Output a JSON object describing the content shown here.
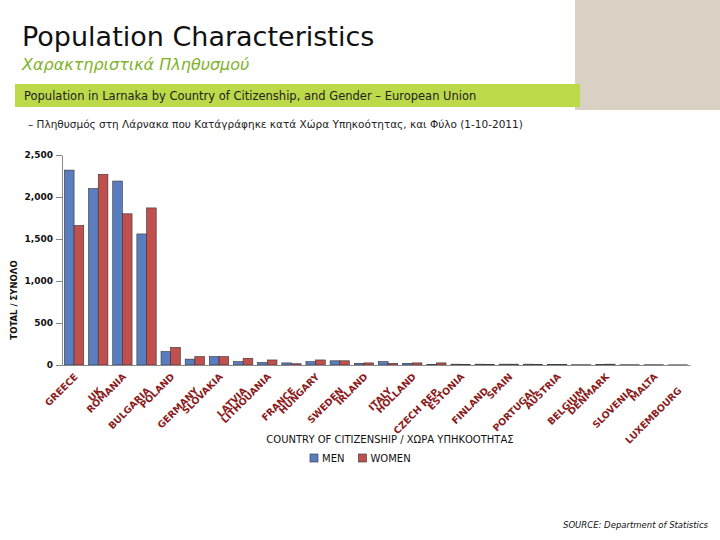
{
  "chart_data": {
    "type": "bar",
    "title": "Population Characteristics",
    "subtitle": "Χαρακτηριστικά Πληθυσμού",
    "annotations": [
      "Population in Larnaka by Country of Citizenship, and Gender – European Union",
      "– Πληθυσμός στη Λάρνακα που Κατάγράφηκε κατά Χώρα Υπηκοότητας, και Φύλο (1-10-2011)",
      "SOURCE: Department of Statistics"
    ],
    "x_label": "COUNTRY OF CITIZENSHIP / ΧΩΡΑ ΥΠΗΚΟΟΤΗΤΑΣ",
    "y_label": "TOTAL / ΣΥΝΟΛΟ",
    "categories": [
      "GREECE",
      "UK",
      "ROMANIA",
      "BULGARIA",
      "POLAND",
      "GERMANY",
      "SLOVAKIA",
      "LATVIA",
      "LITHOUANIA",
      "FRANCE",
      "HUNGARY",
      "SWEDEN",
      "IRLAND",
      "ITALY",
      "HOLLAND",
      "CZECH REP.",
      "ESTONIA",
      "FINLAND",
      "SPAIN",
      "PORTUGAL",
      "AUSTRIA",
      "BELGIUM",
      "DENMARK",
      "SLOVENIA",
      "MALTA",
      "LUXEMBOURG"
    ],
    "series": [
      {
        "name": "MEN",
        "color": "#5a7dc0",
        "values": [
          2320,
          2100,
          2190,
          1560,
          160,
          70,
          100,
          40,
          30,
          25,
          40,
          50,
          20,
          40,
          20,
          5,
          10,
          10,
          10,
          10,
          5,
          3,
          5,
          3,
          3,
          2
        ]
      },
      {
        "name": "WOMEN",
        "color": "#c0504d",
        "values": [
          1660,
          2270,
          1800,
          1870,
          210,
          100,
          100,
          80,
          60,
          15,
          60,
          50,
          25,
          20,
          25,
          25,
          5,
          5,
          10,
          5,
          5,
          3,
          10,
          3,
          3,
          2
        ]
      }
    ],
    "ylim": [
      0,
      2500
    ],
    "yticks": [
      0,
      500,
      {
        "value": 1000,
        "label": "1,000"
      },
      {
        "value": 1500,
        "label": "1,500"
      },
      {
        "value": 2000,
        "label": "2,000"
      },
      {
        "value": 2500,
        "label": "2,500"
      }
    ],
    "grid": false,
    "legend": "bottom"
  }
}
